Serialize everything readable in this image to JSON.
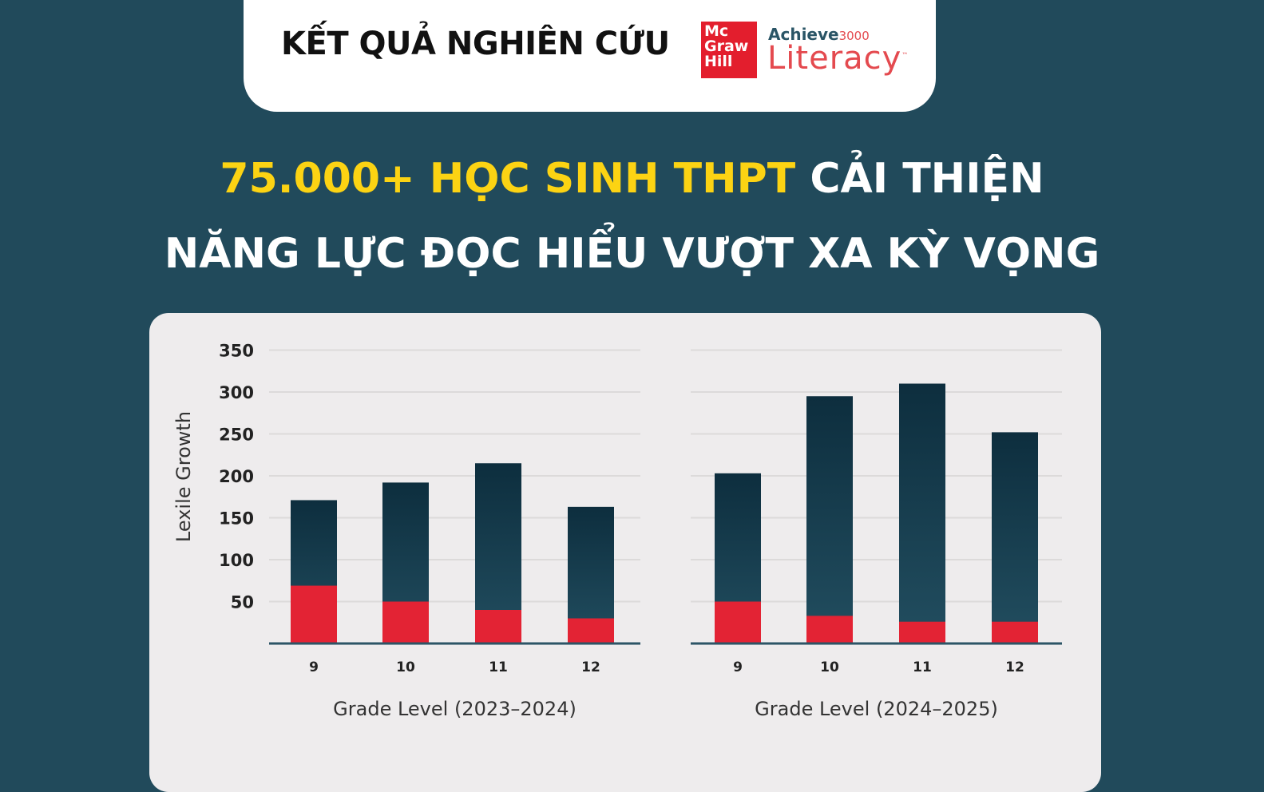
{
  "header": {
    "title": "KẾT QUẢ NGHIÊN CỨU",
    "logo": {
      "brand_box": "Mc Graw Hill",
      "achieve": "Achieve",
      "achieve_num": "3000",
      "literacy": "Literacy",
      "tm": "™"
    }
  },
  "headline": {
    "line1_highlight": "75.000+ HỌC SINH THPT",
    "line1_rest": " CẢI THIỆN",
    "line2": "NĂNG LỰC ĐỌC HIỂU VƯỢT XA KỲ VỌNG"
  },
  "colors": {
    "background": "#214a5b",
    "highlight": "#fcd313",
    "bar_top": "#0d2e3e",
    "bar_bottom": "#224e60",
    "red_segment": "#e32334",
    "panel": "#eeeced"
  },
  "chart_data": [
    {
      "type": "bar",
      "stacked_overlay": true,
      "categories": [
        "9",
        "10",
        "11",
        "12"
      ],
      "series": [
        {
          "values": [
            171,
            192,
            215,
            163
          ]
        },
        {
          "values": [
            69,
            50,
            40,
            30
          ]
        }
      ],
      "xlabel": "Grade Level (2023–2024)",
      "ylabel": "Lexile Growth",
      "ylim": [
        0,
        350
      ],
      "yticks": [
        "50",
        "100",
        "150",
        "200",
        "250",
        "300",
        "350"
      ],
      "grid": true
    },
    {
      "type": "bar",
      "stacked_overlay": true,
      "categories": [
        "9",
        "10",
        "11",
        "12"
      ],
      "series": [
        {
          "values": [
            203,
            295,
            310,
            252
          ]
        },
        {
          "values": [
            50,
            33,
            26,
            26
          ]
        }
      ],
      "xlabel": "Grade Level (2024–2025)",
      "ylabel": "",
      "ylim": [
        0,
        350
      ],
      "grid": true
    }
  ]
}
